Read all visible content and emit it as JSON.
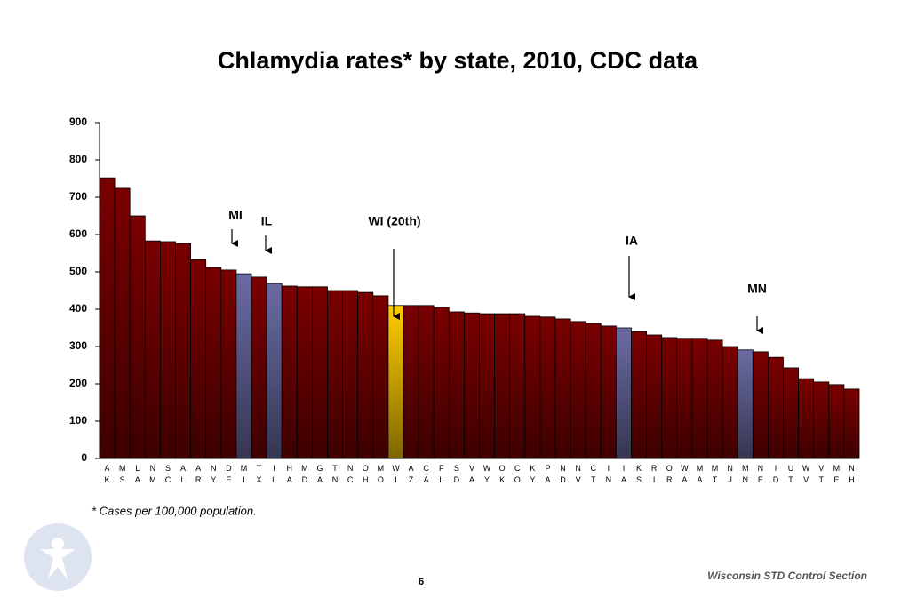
{
  "chart_data": {
    "type": "bar",
    "title": "Chlamydia rates* by state, 2010, CDC data",
    "categories": [
      "AK",
      "MS",
      "LA",
      "NM",
      "SC",
      "AL",
      "AR",
      "NY",
      "DE",
      "MI",
      "TX",
      "IL",
      "HA",
      "MD",
      "GA",
      "TN",
      "NC",
      "OH",
      "MO",
      "WI",
      "AZ",
      "CA",
      "FL",
      "SD",
      "VA",
      "WY",
      "OK",
      "CO",
      "KY",
      "PA",
      "ND",
      "NV",
      "CT",
      "IN",
      "IA",
      "KS",
      "RI",
      "OR",
      "WA",
      "MA",
      "MT",
      "NJ",
      "MN",
      "NE",
      "ID",
      "UT",
      "WV",
      "VT",
      "ME",
      "NH"
    ],
    "values": [
      752,
      724,
      650,
      583,
      581,
      576,
      533,
      512,
      505,
      495,
      486,
      469,
      462,
      460,
      460,
      450,
      450,
      445,
      436,
      410,
      410,
      410,
      405,
      393,
      390,
      388,
      388,
      388,
      381,
      379,
      374,
      367,
      362,
      355,
      350,
      340,
      331,
      324,
      322,
      322,
      317,
      300,
      291,
      286,
      271,
      243,
      214,
      205,
      198,
      186
    ],
    "colors": [
      "#7a0000",
      "#7a0000",
      "#7a0000",
      "#7a0000",
      "#7a0000",
      "#7a0000",
      "#7a0000",
      "#7a0000",
      "#7a0000",
      "#6b6ba3",
      "#7a0000",
      "#6b6ba3",
      "#7a0000",
      "#7a0000",
      "#7a0000",
      "#7a0000",
      "#7a0000",
      "#7a0000",
      "#7a0000",
      "#ffcc00",
      "#7a0000",
      "#7a0000",
      "#7a0000",
      "#7a0000",
      "#7a0000",
      "#7a0000",
      "#7a0000",
      "#7a0000",
      "#7a0000",
      "#7a0000",
      "#7a0000",
      "#7a0000",
      "#7a0000",
      "#7a0000",
      "#6b6ba3",
      "#7a0000",
      "#7a0000",
      "#7a0000",
      "#7a0000",
      "#7a0000",
      "#7a0000",
      "#7a0000",
      "#6b6ba3",
      "#7a0000",
      "#7a0000",
      "#7a0000",
      "#7a0000",
      "#7a0000",
      "#7a0000",
      "#7a0000"
    ],
    "ylim": [
      0,
      900
    ],
    "yticks": [
      0,
      100,
      200,
      300,
      400,
      500,
      600,
      700,
      800,
      900
    ],
    "annotations": [
      "MI",
      "IL",
      "WI (20th)",
      "IA",
      "MN"
    ],
    "footnote": "* Cases per 100,000 population.",
    "footer": "Wisconsin STD Control Section",
    "page_number": "6"
  }
}
